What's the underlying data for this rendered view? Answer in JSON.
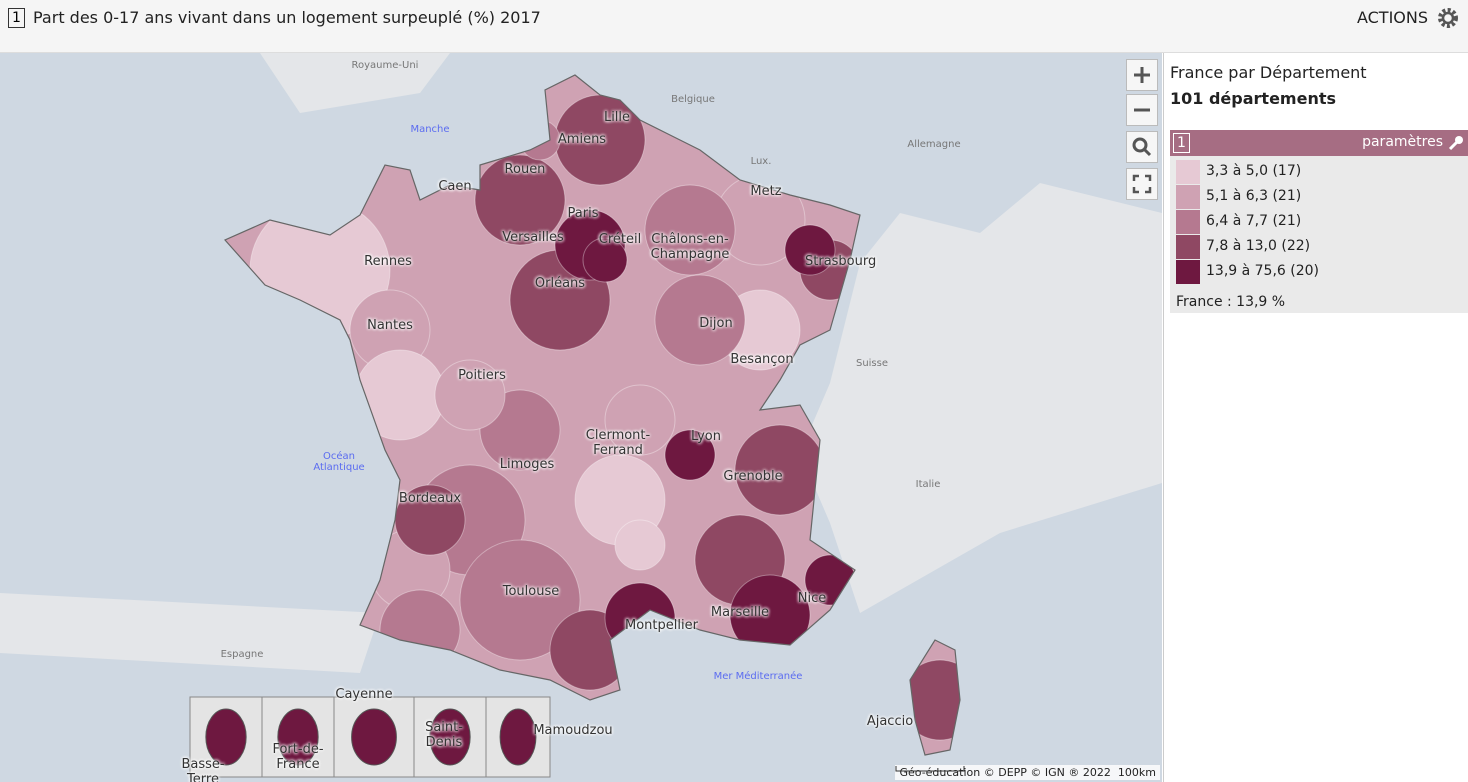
{
  "header": {
    "index": "1",
    "title": "Part des 0-17 ans vivant dans un logement surpeuplé (%) 2017",
    "actions": "ACTIONS"
  },
  "map": {
    "countries": [
      "Royaume-Uni",
      "Belgique",
      "Lux.",
      "Allemagne",
      "Suisse",
      "Italie",
      "Espagne"
    ],
    "seas": [
      "Manche",
      "Océan Atlantique",
      "Mer Méditerranée"
    ],
    "cities": [
      "Lille",
      "Amiens",
      "Rouen",
      "Caen",
      "Paris",
      "Versailles",
      "Créteil",
      "Châlons-en-Champagne",
      "Metz",
      "Strasbourg",
      "Rennes",
      "Nantes",
      "Orléans",
      "Dijon",
      "Besançon",
      "Poitiers",
      "Limoges",
      "Clermont-Ferrand",
      "Lyon",
      "Grenoble",
      "Bordeaux",
      "Toulouse",
      "Montpellier",
      "Marseille",
      "Nice",
      "Ajaccio"
    ],
    "insets": [
      "Basse-Terre",
      "Fort-de-France",
      "Cayenne",
      "Saint-Denis",
      "Mamoudzou"
    ],
    "attribution": "Géo-éducation © DEPP © IGN ® 2022",
    "scale": "100km"
  },
  "panel": {
    "title": "France par Département",
    "count": "101 départements",
    "layer_index": "1",
    "settings": "paramètres",
    "legend": [
      {
        "label": "3,3 à 5,0 (17)",
        "color": "#e6c9d4"
      },
      {
        "label": "5,1 à 6,3 (21)",
        "color": "#cfa2b3"
      },
      {
        "label": "6,4 à 7,7 (21)",
        "color": "#b57990"
      },
      {
        "label": "7,8 à 13,0 (22)",
        "color": "#8f4863"
      },
      {
        "label": "13,9 à 75,6 (20)",
        "color": "#6e1840"
      }
    ],
    "france": "France : 13,9 %"
  }
}
